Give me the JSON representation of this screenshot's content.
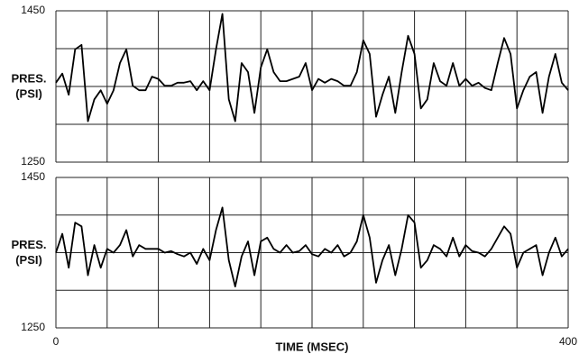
{
  "chart_data": [
    {
      "type": "line",
      "ylabel": [
        "PRES.",
        "(PSI)"
      ],
      "color": "#000000",
      "grid": true,
      "ylim": [
        1250,
        1450
      ],
      "yticks": [
        1250,
        {
          "value": 1300,
          "label": null
        },
        {
          "value": 1350,
          "label": null
        },
        {
          "value": 1400,
          "label": null
        },
        1450
      ],
      "xlim": [
        0,
        400
      ],
      "xticks": [
        {
          "value": 0,
          "label": null
        },
        {
          "value": 40,
          "label": null
        },
        {
          "value": 80,
          "label": null
        },
        {
          "value": 120,
          "label": null
        },
        {
          "value": 160,
          "label": null
        },
        {
          "value": 200,
          "label": null
        },
        {
          "value": 240,
          "label": null
        },
        {
          "value": 280,
          "label": null
        },
        {
          "value": 320,
          "label": null
        },
        {
          "value": 360,
          "label": null
        },
        {
          "value": 400,
          "label": null
        }
      ],
      "x": [
        0,
        5,
        10,
        15,
        20,
        25,
        30,
        35,
        40,
        45,
        50,
        55,
        60,
        65,
        70,
        75,
        80,
        85,
        90,
        95,
        100,
        105,
        110,
        115,
        120,
        125,
        130,
        135,
        140,
        145,
        150,
        155,
        160,
        165,
        170,
        175,
        180,
        185,
        190,
        195,
        200,
        205,
        210,
        215,
        220,
        225,
        230,
        235,
        240,
        245,
        250,
        255,
        260,
        265,
        270,
        275,
        280,
        285,
        290,
        295,
        300,
        305,
        310,
        315,
        320,
        325,
        330,
        335,
        340,
        345,
        350,
        355,
        360,
        365,
        370,
        375,
        380,
        385,
        390,
        395,
        400
      ],
      "values": [
        1355,
        1367,
        1339,
        1399,
        1405,
        1304,
        1333,
        1345,
        1327,
        1345,
        1381,
        1399,
        1351,
        1345,
        1345,
        1363,
        1360,
        1351,
        1351,
        1355,
        1355,
        1357,
        1345,
        1357,
        1345,
        1399,
        1446,
        1333,
        1304,
        1381,
        1369,
        1315,
        1375,
        1399,
        1369,
        1357,
        1357,
        1360,
        1363,
        1381,
        1345,
        1360,
        1355,
        1360,
        1357,
        1351,
        1351,
        1369,
        1411,
        1393,
        1310,
        1339,
        1363,
        1315,
        1369,
        1417,
        1393,
        1321,
        1333,
        1381,
        1357,
        1351,
        1381,
        1351,
        1360,
        1351,
        1355,
        1348,
        1345,
        1381,
        1414,
        1393,
        1321,
        1345,
        1363,
        1369,
        1315,
        1363,
        1393,
        1355,
        1345
      ]
    },
    {
      "type": "line",
      "ylabel": [
        "PRES.",
        "(PSI)"
      ],
      "xlabel": "TIME (MSEC)",
      "color": "#000000",
      "grid": true,
      "ylim": [
        1250,
        1450
      ],
      "yticks": [
        1250,
        {
          "value": 1300,
          "label": null
        },
        {
          "value": 1350,
          "label": null
        },
        {
          "value": 1400,
          "label": null
        },
        1450
      ],
      "xlim": [
        0,
        400
      ],
      "xticks": [
        0,
        {
          "value": 40,
          "label": null
        },
        {
          "value": 80,
          "label": null
        },
        {
          "value": 120,
          "label": null
        },
        {
          "value": 160,
          "label": null
        },
        {
          "value": 200,
          "label": null
        },
        {
          "value": 240,
          "label": null
        },
        {
          "value": 280,
          "label": null
        },
        {
          "value": 320,
          "label": null
        },
        {
          "value": 360,
          "label": null
        },
        400
      ],
      "x": [
        0,
        5,
        10,
        15,
        20,
        25,
        30,
        35,
        40,
        45,
        50,
        55,
        60,
        65,
        70,
        75,
        80,
        85,
        90,
        95,
        100,
        105,
        110,
        115,
        120,
        125,
        130,
        135,
        140,
        145,
        150,
        155,
        160,
        165,
        170,
        175,
        180,
        185,
        190,
        195,
        200,
        205,
        210,
        215,
        220,
        225,
        230,
        235,
        240,
        245,
        250,
        255,
        260,
        265,
        270,
        275,
        280,
        285,
        290,
        295,
        300,
        305,
        310,
        315,
        320,
        325,
        330,
        335,
        340,
        345,
        350,
        355,
        360,
        365,
        370,
        375,
        380,
        385,
        390,
        395,
        400
      ],
      "values": [
        1350,
        1375,
        1330,
        1390,
        1385,
        1320,
        1360,
        1330,
        1355,
        1350,
        1360,
        1380,
        1345,
        1360,
        1355,
        1355,
        1355,
        1350,
        1352,
        1348,
        1345,
        1350,
        1335,
        1355,
        1340,
        1380,
        1410,
        1340,
        1305,
        1345,
        1365,
        1320,
        1365,
        1370,
        1355,
        1350,
        1360,
        1350,
        1352,
        1360,
        1348,
        1345,
        1355,
        1350,
        1360,
        1345,
        1350,
        1365,
        1400,
        1370,
        1310,
        1340,
        1360,
        1320,
        1355,
        1400,
        1390,
        1330,
        1340,
        1360,
        1355,
        1345,
        1370,
        1345,
        1360,
        1352,
        1350,
        1345,
        1355,
        1370,
        1385,
        1375,
        1330,
        1350,
        1355,
        1360,
        1320,
        1350,
        1370,
        1345,
        1355
      ]
    }
  ]
}
